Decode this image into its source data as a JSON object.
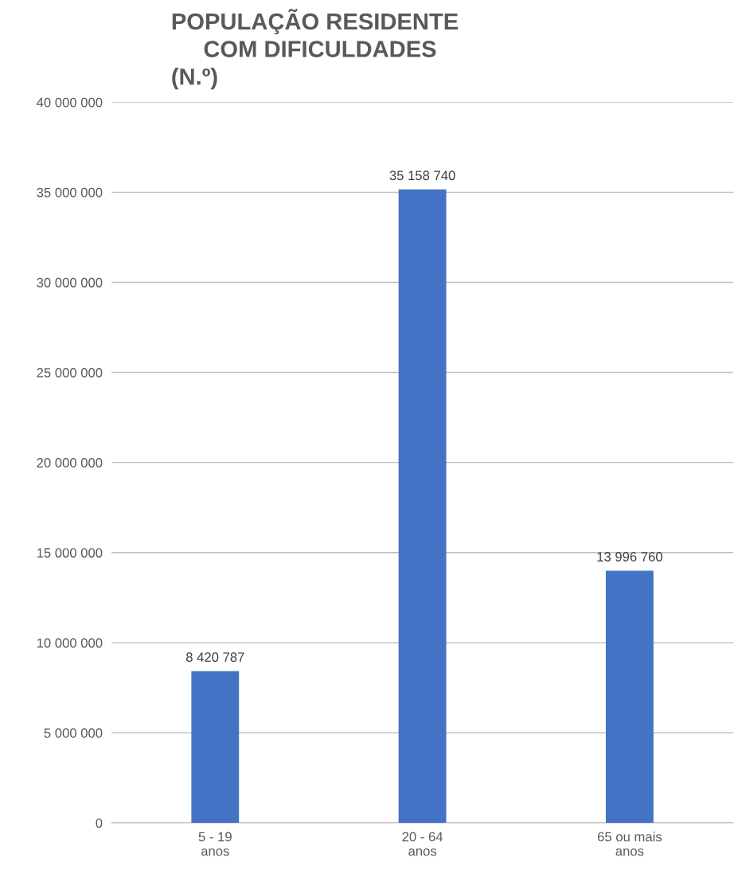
{
  "chart_data": {
    "type": "bar",
    "title": "POPULAÇÃO RESIDENTE\n     COM DIFICULDADES\n(N.º)",
    "categories": [
      "5 - 19\nanos",
      "20 - 64\nanos",
      "65 ou mais\nanos"
    ],
    "values": [
      8420787,
      35158740,
      13996760
    ],
    "value_labels": [
      "8 420 787",
      "35 158 740",
      "13 996 760"
    ],
    "color": "#4472c4",
    "ylim": [
      0,
      40000000
    ],
    "yticks": [
      {
        "value": 0,
        "label": "0"
      },
      {
        "value": 5000000,
        "label": "5 000 000"
      },
      {
        "value": 10000000,
        "label": "10 000 000"
      },
      {
        "value": 15000000,
        "label": "15 000 000"
      },
      {
        "value": 20000000,
        "label": "20 000 000"
      },
      {
        "value": 25000000,
        "label": "25 000 000"
      },
      {
        "value": 30000000,
        "label": "30 000 000"
      },
      {
        "value": 35000000,
        "label": "35 000 000"
      },
      {
        "value": 40000000,
        "label": "40 000 000"
      }
    ],
    "grid": "y"
  }
}
